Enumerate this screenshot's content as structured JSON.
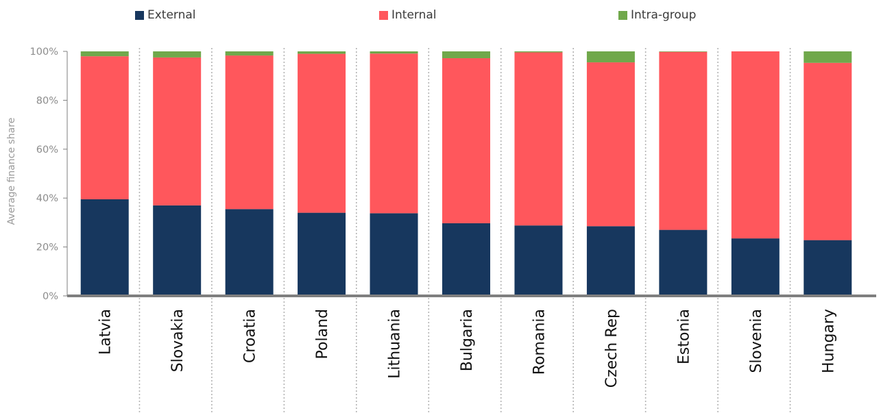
{
  "chart_data": {
    "type": "bar",
    "stacked": true,
    "ylabel": "Average finance  share",
    "ylim": [
      0,
      100
    ],
    "yticks": [
      "0%",
      "20%",
      "40%",
      "60%",
      "80%",
      "100%"
    ],
    "categories": [
      "Latvia",
      "Slovakia",
      "Croatia",
      "Poland",
      "Lithuania",
      "Bulgaria",
      "Romania",
      "Czech Rep",
      "Estonia",
      "Slovenia",
      "Hungary"
    ],
    "series": [
      {
        "name": "External",
        "color": "#17375e",
        "values": [
          39.5,
          37.0,
          35.5,
          34.0,
          33.8,
          29.7,
          28.8,
          28.5,
          27.0,
          23.5,
          22.8
        ]
      },
      {
        "name": "Internal",
        "color": "#ff575c",
        "values": [
          58.5,
          60.5,
          62.8,
          65.0,
          65.3,
          67.5,
          70.8,
          67.0,
          72.8,
          76.5,
          72.5
        ]
      },
      {
        "name": "Intra-group",
        "color": "#70a84b",
        "values": [
          2.0,
          2.5,
          1.7,
          1.0,
          0.9,
          2.8,
          0.4,
          4.5,
          0.2,
          0.0,
          4.7
        ]
      }
    ],
    "grid": false,
    "legend_position": "top"
  }
}
